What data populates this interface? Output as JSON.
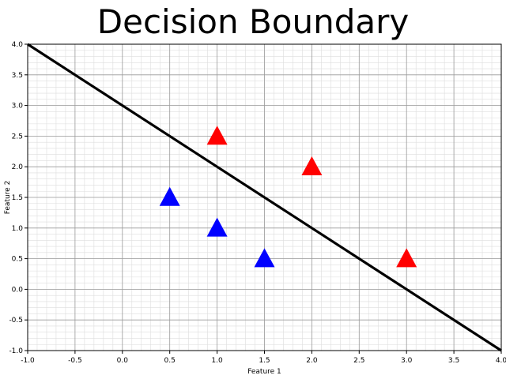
{
  "chart_data": {
    "type": "scatter",
    "title": "Decision Boundary",
    "xlabel": "Feature 1",
    "ylabel": "Feature 2",
    "xlim": [
      -1.0,
      4.0
    ],
    "ylim": [
      -1.0,
      4.0
    ],
    "x_ticks": [
      "-1.0",
      "-0.5",
      "0.0",
      "0.5",
      "1.0",
      "1.5",
      "2.0",
      "2.5",
      "3.0",
      "3.5",
      "4.0"
    ],
    "y_ticks": [
      "-1.0",
      "-0.5",
      "0.0",
      "0.5",
      "1.0",
      "1.5",
      "2.0",
      "2.5",
      "3.0",
      "3.5",
      "4.0"
    ],
    "grid": true,
    "minor_grid": true,
    "marker": "triangle",
    "series": [
      {
        "color": "#ff0000",
        "points": [
          [
            1.0,
            2.5
          ],
          [
            2.0,
            2.0
          ],
          [
            3.0,
            0.5
          ]
        ]
      },
      {
        "color": "#0000ff",
        "points": [
          [
            0.5,
            1.5
          ],
          [
            1.0,
            1.0
          ],
          [
            1.5,
            0.5
          ]
        ]
      }
    ],
    "boundary_line": {
      "color": "#000000",
      "points": [
        [
          -1.0,
          4.0
        ],
        [
          4.0,
          -1.0
        ]
      ]
    }
  }
}
